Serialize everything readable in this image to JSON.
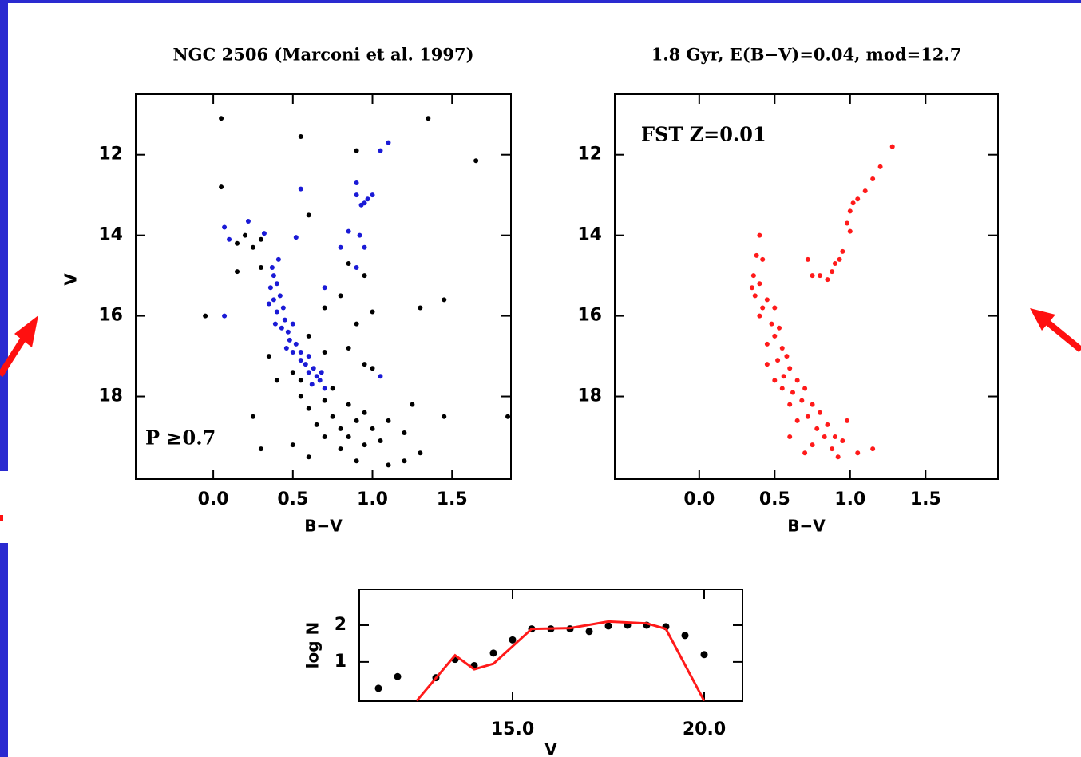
{
  "chart_data": [
    {
      "type": "scatter",
      "title": "NGC 2506 (Marconi et al. 1997)",
      "x_label": "B−V",
      "y_label": "V",
      "annotation": "P ≥0.7",
      "annotation_color": "#1a1ad6",
      "xlim": [
        -0.487,
        1.87
      ],
      "ylim": [
        10.5,
        20.05
      ],
      "invert_y": true,
      "xticks": [
        {
          "value": 0,
          "label": "0.0"
        },
        {
          "value": 0.5,
          "label": "0.5"
        },
        {
          "value": 1,
          "label": "1.0"
        },
        {
          "value": 1.5,
          "label": "1.5"
        }
      ],
      "yticks": [
        12,
        14,
        16,
        18
      ],
      "series": [
        {
          "color": "#000000",
          "x": [
            0.05,
            0.55,
            0.9,
            1.35,
            1.65,
            0.05,
            0.6,
            0.15,
            0.2,
            0.25,
            0.3,
            0.15,
            0.3,
            -0.05,
            0.85,
            0.95,
            0.8,
            0.7,
            0.9,
            1.0,
            1.3,
            1.45,
            0.85,
            0.95,
            1.0,
            0.6,
            0.7,
            0.35,
            0.4,
            0.55,
            0.6,
            0.7,
            0.75,
            0.8,
            0.85,
            0.9,
            0.95,
            0.8,
            0.7,
            0.65,
            1.0,
            1.05,
            1.2,
            1.25,
            1.3,
            1.45,
            1.2,
            0.3,
            0.5,
            1.1,
            0.9,
            0.6,
            0.75,
            0.85,
            0.95,
            1.1,
            0.55,
            0.5,
            1.85,
            0.25
          ],
          "y": [
            11.1,
            11.55,
            11.9,
            11.1,
            12.15,
            12.8,
            13.5,
            14.2,
            14.0,
            14.3,
            14.1,
            14.9,
            14.8,
            16.0,
            14.7,
            15.0,
            15.5,
            15.8,
            16.2,
            15.9,
            15.8,
            15.6,
            16.8,
            17.2,
            17.3,
            16.5,
            16.9,
            17.0,
            17.6,
            18.0,
            18.3,
            18.1,
            18.5,
            18.8,
            19.0,
            18.6,
            19.2,
            19.3,
            19.0,
            18.7,
            18.8,
            19.1,
            18.9,
            18.2,
            19.4,
            18.5,
            19.6,
            19.3,
            19.2,
            19.7,
            19.6,
            19.5,
            17.8,
            18.2,
            18.4,
            18.6,
            17.6,
            17.4,
            18.5,
            18.5
          ]
        },
        {
          "color": "#1a1ad6",
          "x": [
            1.1,
            1.05,
            0.55,
            0.9,
            0.95,
            0.97,
            1.0,
            0.93,
            0.9,
            0.85,
            0.92,
            0.95,
            0.8,
            0.9,
            0.7,
            0.07,
            0.22,
            0.32,
            0.1,
            0.07,
            1.05,
            0.52,
            0.37,
            0.38,
            0.36,
            0.4,
            0.38,
            0.42,
            0.4,
            0.44,
            0.45,
            0.43,
            0.47,
            0.5,
            0.48,
            0.52,
            0.5,
            0.55,
            0.55,
            0.58,
            0.6,
            0.6,
            0.63,
            0.65,
            0.67,
            0.7,
            0.62,
            0.68,
            0.35,
            0.41,
            0.39,
            0.46
          ],
          "y": [
            11.7,
            11.9,
            12.85,
            12.7,
            13.2,
            13.1,
            13.0,
            13.25,
            13.0,
            13.9,
            14.0,
            14.3,
            14.3,
            14.8,
            15.3,
            13.8,
            13.65,
            13.95,
            14.1,
            16.0,
            17.5,
            14.05,
            14.8,
            15.0,
            15.3,
            15.2,
            15.6,
            15.5,
            15.9,
            15.8,
            16.1,
            16.3,
            16.4,
            16.2,
            16.6,
            16.7,
            16.9,
            16.9,
            17.1,
            17.2,
            17.0,
            17.4,
            17.3,
            17.5,
            17.6,
            17.8,
            17.7,
            17.4,
            15.7,
            14.6,
            16.2,
            16.8
          ]
        }
      ]
    },
    {
      "type": "scatter",
      "title": "1.8 Gyr, E(B−V)=0.04, mod=12.7",
      "x_label": "B−V",
      "annotation": "FST Z=0.01",
      "annotation_color": "#000000",
      "xlim": [
        -0.56,
        1.98
      ],
      "ylim": [
        10.5,
        20.05
      ],
      "invert_y": true,
      "xticks": [
        {
          "value": 0,
          "label": "0.0"
        },
        {
          "value": 0.5,
          "label": "0.5"
        },
        {
          "value": 1,
          "label": "1.0"
        },
        {
          "value": 1.5,
          "label": "1.5"
        }
      ],
      "yticks": [
        12,
        14,
        16,
        18
      ],
      "series": [
        {
          "color": "#ff1a1a",
          "x": [
            1.28,
            1.2,
            1.15,
            1.1,
            1.05,
            1.02,
            1.0,
            0.98,
            1.0,
            0.95,
            0.93,
            0.88,
            0.85,
            0.72,
            0.75,
            0.8,
            0.9,
            0.4,
            0.38,
            0.42,
            0.36,
            0.4,
            0.37,
            0.42,
            0.45,
            0.4,
            0.48,
            0.5,
            0.45,
            0.55,
            0.52,
            0.58,
            0.6,
            0.56,
            0.65,
            0.62,
            0.7,
            0.68,
            0.75,
            0.72,
            0.8,
            0.78,
            0.85,
            0.83,
            0.9,
            0.88,
            0.95,
            0.92,
            0.75,
            0.65,
            0.6,
            0.55,
            0.5,
            0.45,
            0.6,
            0.7,
            1.05,
            1.15,
            0.98,
            0.5,
            0.53,
            0.35
          ],
          "y": [
            11.8,
            12.3,
            12.6,
            12.9,
            13.1,
            13.2,
            13.4,
            13.7,
            13.9,
            14.4,
            14.6,
            14.9,
            15.1,
            14.6,
            15.0,
            15.0,
            14.7,
            14.0,
            14.5,
            14.6,
            15.0,
            15.2,
            15.5,
            15.8,
            15.6,
            16.0,
            16.2,
            16.5,
            16.7,
            16.8,
            17.1,
            17.0,
            17.3,
            17.5,
            17.6,
            17.9,
            17.8,
            18.1,
            18.2,
            18.5,
            18.4,
            18.8,
            18.7,
            19.0,
            19.0,
            19.3,
            19.1,
            19.5,
            19.2,
            18.6,
            18.2,
            17.8,
            17.6,
            17.2,
            19.0,
            19.4,
            19.4,
            19.3,
            18.6,
            15.8,
            16.3,
            15.3
          ]
        }
      ]
    },
    {
      "type": "line",
      "x_label": "V",
      "y_label": "log N",
      "xlim": [
        11,
        21
      ],
      "ylim": [
        -0.07,
        2.98
      ],
      "xticks": [
        {
          "value": 15,
          "label": "15.0"
        },
        {
          "value": 20,
          "label": "20.0"
        }
      ],
      "yticks": [
        1,
        2
      ],
      "series": [
        {
          "style": "markers",
          "color": "#000000",
          "x": [
            11.5,
            12.0,
            13.0,
            13.5,
            14.0,
            14.5,
            15.0,
            15.5,
            16.0,
            16.5,
            17.0,
            17.5,
            18.0,
            18.5,
            19.0,
            19.5,
            20.0
          ],
          "y": [
            0.28,
            0.6,
            0.57,
            1.07,
            0.9,
            1.24,
            1.6,
            1.9,
            1.9,
            1.9,
            1.83,
            1.98,
            2.0,
            2.0,
            1.96,
            1.72,
            1.2
          ]
        },
        {
          "style": "line",
          "color": "#ff1a1a",
          "x": [
            12.5,
            13.5,
            14.0,
            14.5,
            15.5,
            16.5,
            17.5,
            18.5,
            19.0,
            20.0
          ],
          "y": [
            -0.06,
            1.18,
            0.8,
            0.95,
            1.9,
            1.92,
            2.1,
            2.05,
            1.9,
            -0.06
          ]
        }
      ]
    }
  ]
}
